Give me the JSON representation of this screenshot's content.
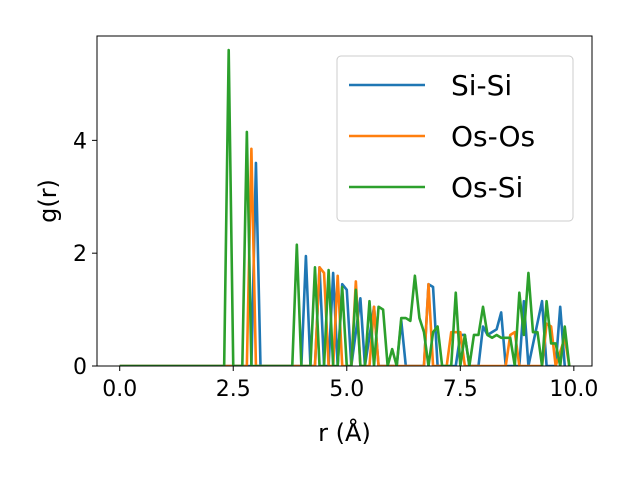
{
  "chart_data": {
    "type": "line",
    "title": "",
    "xlabel": "r (Å)",
    "ylabel": "g(r)",
    "xlim": [
      -0.5,
      10.4
    ],
    "ylim": [
      0,
      5.85
    ],
    "xticks": [
      0.0,
      2.5,
      5.0,
      7.5,
      10.0
    ],
    "xtick_labels": [
      "0.0",
      "2.5",
      "5.0",
      "7.5",
      "10.0"
    ],
    "yticks": [
      0,
      2,
      4
    ],
    "ytick_labels": [
      "0",
      "2",
      "4"
    ],
    "grid": false,
    "legend_position": "top-right",
    "series": [
      {
        "name": "Si-Si",
        "color": "#1f77b4",
        "points": [
          [
            0.0,
            0
          ],
          [
            2.8,
            0
          ],
          [
            2.9,
            0
          ],
          [
            3.0,
            3.6
          ],
          [
            3.1,
            0
          ],
          [
            4.0,
            0
          ],
          [
            4.1,
            1.95
          ],
          [
            4.2,
            0
          ],
          [
            4.3,
            0
          ],
          [
            4.4,
            1.75
          ],
          [
            4.5,
            0
          ],
          [
            4.6,
            0
          ],
          [
            4.7,
            1.65
          ],
          [
            4.8,
            0
          ],
          [
            4.9,
            1.45
          ],
          [
            5.0,
            1.35
          ],
          [
            5.1,
            0
          ],
          [
            5.3,
            1.2
          ],
          [
            5.4,
            0
          ],
          [
            5.6,
            1.05
          ],
          [
            5.7,
            0
          ],
          [
            6.1,
            0
          ],
          [
            6.2,
            0.8
          ],
          [
            6.3,
            0
          ],
          [
            6.7,
            0
          ],
          [
            6.8,
            1.45
          ],
          [
            6.9,
            1.4
          ],
          [
            7.0,
            0
          ],
          [
            7.4,
            0
          ],
          [
            7.5,
            0.55
          ],
          [
            7.6,
            0.55
          ],
          [
            7.7,
            0
          ],
          [
            7.9,
            0
          ],
          [
            8.0,
            0.7
          ],
          [
            8.1,
            0.55
          ],
          [
            8.2,
            0.6
          ],
          [
            8.3,
            0.65
          ],
          [
            8.4,
            0.95
          ],
          [
            8.5,
            0
          ],
          [
            8.8,
            0
          ],
          [
            8.9,
            1.15
          ],
          [
            9.0,
            0
          ],
          [
            9.3,
            1.15
          ],
          [
            9.4,
            0
          ],
          [
            9.6,
            0
          ],
          [
            9.7,
            1.05
          ],
          [
            9.8,
            0
          ]
        ]
      },
      {
        "name": "Os-Os",
        "color": "#ff7f0e",
        "points": [
          [
            0.0,
            0
          ],
          [
            2.7,
            0
          ],
          [
            2.8,
            0
          ],
          [
            2.9,
            3.85
          ],
          [
            3.0,
            0
          ],
          [
            4.3,
            0
          ],
          [
            4.4,
            1.75
          ],
          [
            4.5,
            1.65
          ],
          [
            4.6,
            0
          ],
          [
            4.7,
            0
          ],
          [
            4.8,
            1.6
          ],
          [
            4.9,
            0
          ],
          [
            5.0,
            0
          ],
          [
            5.1,
            0
          ],
          [
            5.2,
            1.5
          ],
          [
            5.3,
            0
          ],
          [
            5.5,
            0
          ],
          [
            5.6,
            1.05
          ],
          [
            5.7,
            0
          ],
          [
            6.7,
            0
          ],
          [
            6.8,
            1.45
          ],
          [
            6.9,
            0
          ],
          [
            7.2,
            0
          ],
          [
            7.3,
            0.6
          ],
          [
            7.4,
            0.6
          ],
          [
            7.5,
            0.6
          ],
          [
            7.6,
            0
          ],
          [
            8.5,
            0
          ],
          [
            8.6,
            0.55
          ],
          [
            8.7,
            0.6
          ],
          [
            8.8,
            0
          ],
          [
            9.3,
            0
          ],
          [
            9.4,
            0.75
          ],
          [
            9.5,
            0.7
          ],
          [
            9.6,
            0
          ],
          [
            9.8,
            0.5
          ],
          [
            9.9,
            0
          ]
        ]
      },
      {
        "name": "Os-Si",
        "color": "#2ca02c",
        "points": [
          [
            0.0,
            0
          ],
          [
            2.2,
            0
          ],
          [
            2.3,
            0
          ],
          [
            2.4,
            5.6
          ],
          [
            2.5,
            0
          ],
          [
            2.6,
            0
          ],
          [
            2.7,
            0
          ],
          [
            2.8,
            4.15
          ],
          [
            2.9,
            0
          ],
          [
            3.8,
            0
          ],
          [
            3.9,
            2.15
          ],
          [
            4.0,
            0
          ],
          [
            4.2,
            0
          ],
          [
            4.3,
            1.75
          ],
          [
            4.4,
            0
          ],
          [
            4.5,
            0
          ],
          [
            4.6,
            1.7
          ],
          [
            4.7,
            0
          ],
          [
            4.8,
            0
          ],
          [
            4.9,
            1.4
          ],
          [
            5.0,
            0
          ],
          [
            5.1,
            0
          ],
          [
            5.2,
            1.35
          ],
          [
            5.3,
            0
          ],
          [
            5.4,
            0
          ],
          [
            5.5,
            1.15
          ],
          [
            5.6,
            0
          ],
          [
            5.7,
            1.05
          ],
          [
            5.8,
            1.0
          ],
          [
            5.9,
            0
          ],
          [
            6.0,
            0.3
          ],
          [
            6.1,
            0
          ],
          [
            6.2,
            0.85
          ],
          [
            6.3,
            0.85
          ],
          [
            6.4,
            0.8
          ],
          [
            6.5,
            1.6
          ],
          [
            6.6,
            0.85
          ],
          [
            6.7,
            0.6
          ],
          [
            6.8,
            0
          ],
          [
            6.9,
            0.6
          ],
          [
            7.0,
            0.7
          ],
          [
            7.1,
            0
          ],
          [
            7.3,
            0
          ],
          [
            7.4,
            1.3
          ],
          [
            7.5,
            0
          ],
          [
            7.6,
            0.55
          ],
          [
            7.7,
            0
          ],
          [
            7.8,
            0.55
          ],
          [
            7.9,
            0.55
          ],
          [
            8.0,
            1.05
          ],
          [
            8.1,
            0.55
          ],
          [
            8.2,
            0.5
          ],
          [
            8.3,
            0.55
          ],
          [
            8.4,
            0.5
          ],
          [
            8.5,
            0.5
          ],
          [
            8.6,
            0.5
          ],
          [
            8.7,
            0
          ],
          [
            8.8,
            1.3
          ],
          [
            8.9,
            0.55
          ],
          [
            9.0,
            1.65
          ],
          [
            9.1,
            0.6
          ],
          [
            9.2,
            0.6
          ],
          [
            9.3,
            0
          ],
          [
            9.4,
            1.15
          ],
          [
            9.5,
            0.4
          ],
          [
            9.6,
            0.4
          ],
          [
            9.7,
            0
          ],
          [
            9.8,
            0.7
          ],
          [
            9.9,
            0
          ]
        ]
      }
    ]
  }
}
